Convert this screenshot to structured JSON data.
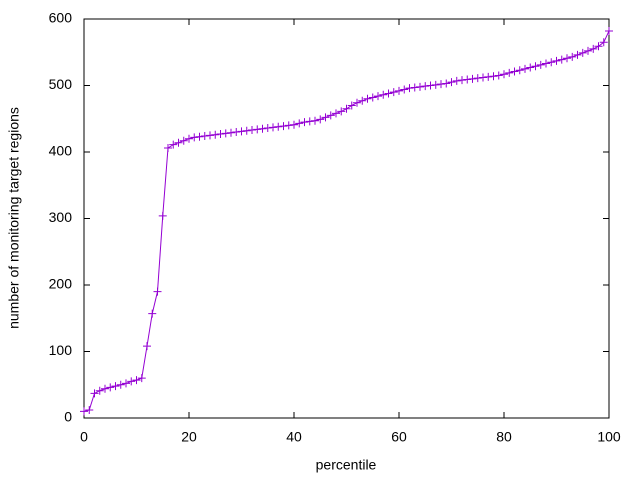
{
  "chart_data": {
    "type": "line",
    "x_label": "percentile",
    "y_label": "number of monitoring target regions",
    "x": [
      0,
      1,
      2,
      3,
      4,
      5,
      6,
      7,
      8,
      9,
      10,
      11,
      12,
      13,
      14,
      15,
      16,
      17,
      18,
      19,
      20,
      21,
      22,
      23,
      24,
      25,
      26,
      27,
      28,
      29,
      30,
      31,
      32,
      33,
      34,
      35,
      36,
      37,
      38,
      39,
      40,
      41,
      42,
      43,
      44,
      45,
      46,
      47,
      48,
      49,
      50,
      51,
      52,
      53,
      54,
      55,
      56,
      57,
      58,
      59,
      60,
      61,
      62,
      63,
      64,
      65,
      66,
      67,
      68,
      69,
      70,
      71,
      72,
      73,
      74,
      75,
      76,
      77,
      78,
      79,
      80,
      81,
      82,
      83,
      84,
      85,
      86,
      87,
      88,
      89,
      90,
      91,
      92,
      93,
      94,
      95,
      96,
      97,
      98,
      99,
      100
    ],
    "values": [
      10,
      12,
      37,
      41,
      44,
      46,
      48,
      50,
      52,
      55,
      57,
      60,
      108,
      157,
      190,
      304,
      406,
      411,
      414,
      417,
      420,
      422,
      423,
      424,
      425,
      426,
      427,
      428,
      429,
      430,
      431,
      432,
      433,
      434,
      435,
      436,
      437,
      438,
      439,
      440,
      441,
      443,
      445,
      446,
      447,
      449,
      452,
      455,
      458,
      461,
      465,
      470,
      474,
      477,
      480,
      482,
      484,
      486,
      488,
      490,
      492,
      494,
      496,
      497,
      498,
      499,
      500,
      501,
      502,
      503,
      505,
      507,
      508,
      509,
      510,
      511,
      512,
      513,
      514,
      515,
      517,
      519,
      521,
      523,
      525,
      527,
      529,
      531,
      533,
      535,
      537,
      539,
      541,
      543,
      546,
      549,
      552,
      555,
      559,
      565,
      582
    ],
    "color": "#9400d3",
    "xlim": [
      0,
      100
    ],
    "xticks": [
      0,
      20,
      40,
      60,
      80,
      100
    ],
    "ylim": [
      0,
      600
    ],
    "yticks": [
      0,
      100,
      200,
      300,
      400,
      500,
      600
    ],
    "grid": false
  }
}
